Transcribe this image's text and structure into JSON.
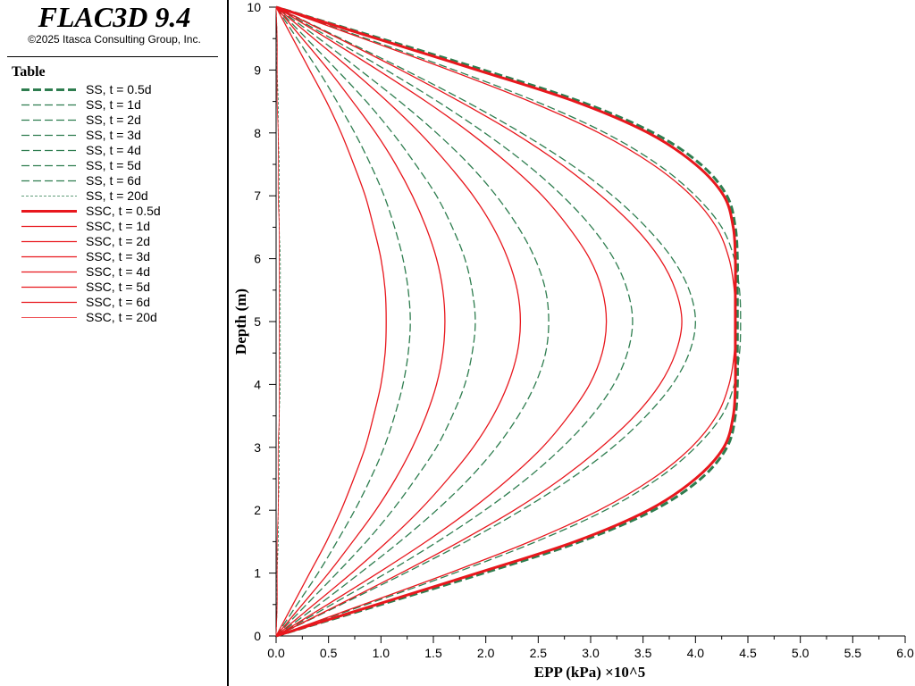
{
  "app": {
    "title": "FLAC3D 9.4",
    "copyright": "©2025 Itasca Consulting Group, Inc."
  },
  "legend": {
    "title": "Table",
    "items": [
      {
        "label": "SS, t = 0.5d",
        "color": "#2e7d4f",
        "style": "dashed",
        "weight": "thick"
      },
      {
        "label": "SS, t = 1d",
        "color": "#2e7d4f",
        "style": "dashed",
        "weight": "normal"
      },
      {
        "label": "SS, t = 2d",
        "color": "#2e7d4f",
        "style": "dashed",
        "weight": "normal"
      },
      {
        "label": "SS, t = 3d",
        "color": "#2e7d4f",
        "style": "dashed",
        "weight": "normal"
      },
      {
        "label": "SS, t = 4d",
        "color": "#2e7d4f",
        "style": "dashed",
        "weight": "normal"
      },
      {
        "label": "SS, t = 5d",
        "color": "#2e7d4f",
        "style": "dashed",
        "weight": "normal"
      },
      {
        "label": "SS, t = 6d",
        "color": "#2e7d4f",
        "style": "dashed",
        "weight": "normal"
      },
      {
        "label": "SS, t = 20d",
        "color": "#2e7d4f",
        "style": "dashed",
        "weight": "thin"
      },
      {
        "label": "SSC, t = 0.5d",
        "color": "#e8171d",
        "style": "solid",
        "weight": "thick"
      },
      {
        "label": "SSC, t = 1d",
        "color": "#e8171d",
        "style": "solid",
        "weight": "normal"
      },
      {
        "label": "SSC, t = 2d",
        "color": "#e8171d",
        "style": "solid",
        "weight": "normal"
      },
      {
        "label": "SSC, t = 3d",
        "color": "#e8171d",
        "style": "solid",
        "weight": "normal"
      },
      {
        "label": "SSC, t = 4d",
        "color": "#e8171d",
        "style": "solid",
        "weight": "normal"
      },
      {
        "label": "SSC, t = 5d",
        "color": "#e8171d",
        "style": "solid",
        "weight": "normal"
      },
      {
        "label": "SSC, t = 6d",
        "color": "#e8171d",
        "style": "solid",
        "weight": "normal"
      },
      {
        "label": "SSC, t = 20d",
        "color": "#e8171d",
        "style": "solid",
        "weight": "thin"
      }
    ]
  },
  "chart_data": {
    "type": "line",
    "xlabel": "EPP (kPa) ×10^5",
    "ylabel": "Depth (m)",
    "xlim": [
      0,
      6
    ],
    "ylim": [
      0,
      10
    ],
    "xticks": [
      "0.0",
      "0.5",
      "1.0",
      "1.5",
      "2.0",
      "2.5",
      "3.0",
      "3.5",
      "4.0",
      "4.5",
      "5.0",
      "5.5",
      "6.0"
    ],
    "yticks": [
      "0",
      "1",
      "2",
      "3",
      "4",
      "5",
      "6",
      "7",
      "8",
      "9",
      "10"
    ],
    "grid": false,
    "legend_position": "left panel",
    "y_values": [
      0,
      0.5,
      1,
      1.5,
      2,
      2.5,
      3,
      3.5,
      4,
      4.5,
      5,
      5.5,
      6,
      6.5,
      7,
      7.5,
      8,
      8.5,
      9,
      9.5,
      10
    ],
    "series": [
      {
        "name": "SS, t = 0.5d",
        "x": [
          0,
          1.0,
          1.98,
          2.9,
          3.6,
          4.05,
          4.3,
          4.38,
          4.4,
          4.4,
          4.4,
          4.4,
          4.4,
          4.38,
          4.3,
          4.05,
          3.6,
          2.9,
          1.98,
          1.0,
          0
        ]
      },
      {
        "name": "SS, t = 1d",
        "x": [
          0,
          0.86,
          1.7,
          2.48,
          3.14,
          3.64,
          4.0,
          4.25,
          4.37,
          4.42,
          4.43,
          4.42,
          4.37,
          4.25,
          4.0,
          3.64,
          3.14,
          2.48,
          1.7,
          0.86,
          0
        ]
      },
      {
        "name": "SS, t = 2d",
        "x": [
          0,
          0.62,
          1.23,
          1.81,
          2.34,
          2.81,
          3.21,
          3.53,
          3.78,
          3.94,
          4.0,
          3.94,
          3.78,
          3.53,
          3.21,
          2.81,
          2.34,
          1.81,
          1.23,
          0.62,
          0
        ]
      },
      {
        "name": "SS, t = 3d",
        "x": [
          0,
          0.53,
          1.05,
          1.54,
          1.99,
          2.39,
          2.73,
          3.01,
          3.22,
          3.35,
          3.4,
          3.35,
          3.22,
          3.01,
          2.73,
          2.39,
          1.99,
          1.54,
          1.05,
          0.53,
          0
        ]
      },
      {
        "name": "SS, t = 4d",
        "x": [
          0,
          0.41,
          0.8,
          1.18,
          1.53,
          1.84,
          2.1,
          2.31,
          2.47,
          2.57,
          2.6,
          2.57,
          2.47,
          2.31,
          2.1,
          1.84,
          1.53,
          1.18,
          0.8,
          0.41,
          0
        ]
      },
      {
        "name": "SS, t = 5d",
        "x": [
          0,
          0.29,
          0.58,
          0.86,
          1.11,
          1.33,
          1.53,
          1.68,
          1.8,
          1.87,
          1.9,
          1.87,
          1.8,
          1.68,
          1.53,
          1.33,
          1.11,
          0.86,
          0.58,
          0.29,
          0
        ]
      },
      {
        "name": "SS, t = 6d",
        "x": [
          0,
          0.2,
          0.4,
          0.58,
          0.75,
          0.9,
          1.03,
          1.13,
          1.21,
          1.26,
          1.28,
          1.26,
          1.21,
          1.13,
          1.03,
          0.9,
          0.75,
          0.58,
          0.4,
          0.2,
          0
        ]
      },
      {
        "name": "SS, t = 20d",
        "x": [
          0,
          0.01,
          0.01,
          0.02,
          0.02,
          0.03,
          0.03,
          0.03,
          0.04,
          0.04,
          0.04,
          0.04,
          0.04,
          0.03,
          0.03,
          0.03,
          0.02,
          0.02,
          0.01,
          0.01,
          0
        ]
      },
      {
        "name": "SSC, t = 0.5d",
        "x": [
          0,
          0.96,
          1.92,
          2.85,
          3.55,
          4.0,
          4.27,
          4.36,
          4.38,
          4.38,
          4.38,
          4.38,
          4.38,
          4.36,
          4.27,
          4.0,
          3.55,
          2.85,
          1.92,
          0.96,
          0
        ]
      },
      {
        "name": "SSC, t = 1d",
        "x": [
          0,
          0.83,
          1.65,
          2.42,
          3.08,
          3.59,
          3.96,
          4.2,
          4.32,
          4.37,
          4.38,
          4.37,
          4.32,
          4.2,
          3.96,
          3.59,
          3.08,
          2.42,
          1.65,
          0.83,
          0
        ]
      },
      {
        "name": "SSC, t = 2d",
        "x": [
          0,
          0.6,
          1.19,
          1.75,
          2.27,
          2.72,
          3.1,
          3.42,
          3.66,
          3.81,
          3.87,
          3.81,
          3.66,
          3.42,
          3.1,
          2.72,
          2.27,
          1.75,
          1.19,
          0.6,
          0
        ]
      },
      {
        "name": "SSC, t = 3d",
        "x": [
          0,
          0.49,
          0.97,
          1.43,
          1.85,
          2.22,
          2.54,
          2.79,
          2.99,
          3.11,
          3.15,
          3.11,
          2.99,
          2.79,
          2.54,
          2.22,
          1.85,
          1.43,
          0.97,
          0.49,
          0
        ]
      },
      {
        "name": "SSC, t = 4d",
        "x": [
          0,
          0.36,
          0.72,
          1.06,
          1.37,
          1.64,
          1.88,
          2.07,
          2.21,
          2.3,
          2.33,
          2.3,
          2.21,
          2.07,
          1.88,
          1.64,
          1.37,
          1.06,
          0.72,
          0.36,
          0
        ]
      },
      {
        "name": "SSC, t = 5d",
        "x": [
          0,
          0.25,
          0.5,
          0.73,
          0.95,
          1.14,
          1.3,
          1.43,
          1.53,
          1.59,
          1.61,
          1.59,
          1.53,
          1.43,
          1.3,
          1.14,
          0.95,
          0.73,
          0.5,
          0.25,
          0
        ]
      },
      {
        "name": "SSC, t = 6d",
        "x": [
          0,
          0.16,
          0.32,
          0.48,
          0.62,
          0.74,
          0.85,
          0.93,
          1.0,
          1.04,
          1.05,
          1.04,
          1.0,
          0.93,
          0.85,
          0.74,
          0.62,
          0.48,
          0.32,
          0.16,
          0
        ]
      },
      {
        "name": "SSC, t = 20d",
        "x": [
          0,
          0.01,
          0.01,
          0.01,
          0.02,
          0.02,
          0.02,
          0.03,
          0.03,
          0.03,
          0.03,
          0.03,
          0.03,
          0.03,
          0.02,
          0.02,
          0.02,
          0.01,
          0.01,
          0.01,
          0
        ]
      }
    ]
  }
}
